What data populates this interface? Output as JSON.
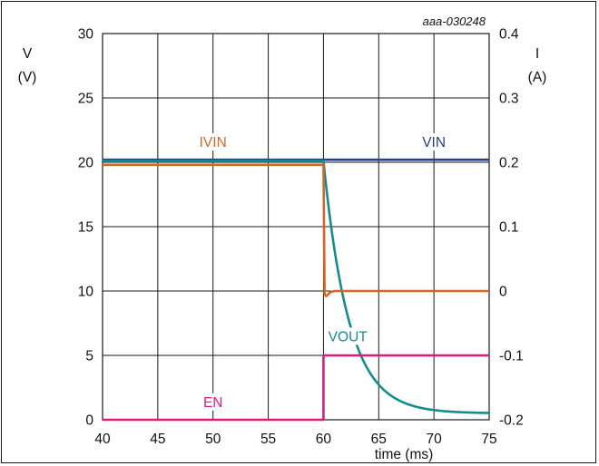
{
  "chart_data": {
    "type": "line",
    "code": "aaa-030248",
    "xlabel": "time (ms)",
    "ylabel_left": [
      "V",
      "(V)"
    ],
    "ylabel_right": [
      "I",
      "(A)"
    ],
    "xlim": [
      40,
      75
    ],
    "ylim_left": [
      0,
      30
    ],
    "ylim_right": [
      -0.2,
      0.4
    ],
    "x_ticks": [
      "40",
      "45",
      "50",
      "55",
      "60",
      "65",
      "70",
      "75"
    ],
    "y_ticks_left": [
      "0",
      "5",
      "10",
      "15",
      "20",
      "25",
      "30"
    ],
    "y_ticks_right": [
      "-0.2",
      "-0.1",
      "0",
      "0.1",
      "0.2",
      "0.3",
      "0.4"
    ],
    "grid": true,
    "series": [
      {
        "name": "VIN",
        "axis": "left",
        "color": "#253f8f",
        "x": [
          40,
          75
        ],
        "y": [
          20.2,
          20.2
        ]
      },
      {
        "name": "VOUT",
        "axis": "left",
        "color": "#158c8c",
        "x": [
          40,
          60,
          60.5,
          61,
          61.5,
          62,
          62.5,
          63,
          64,
          65,
          66,
          67,
          68,
          70,
          72,
          75
        ],
        "y": [
          20.1,
          20.1,
          16.5,
          13.4,
          10.9,
          8.9,
          7.3,
          6.0,
          4.1,
          2.9,
          2.1,
          1.6,
          1.2,
          0.8,
          0.6,
          0.5
        ]
      },
      {
        "name": "IVIN",
        "axis": "right",
        "color": "#d2672a",
        "x": [
          40,
          60,
          60.1,
          60.25,
          60.6,
          61,
          75
        ],
        "y": [
          0.196,
          0.196,
          -0.005,
          -0.008,
          -0.002,
          0.0,
          0.0
        ]
      },
      {
        "name": "EN",
        "axis": "left",
        "color": "#e0197e",
        "x": [
          40,
          60,
          60,
          75
        ],
        "y": [
          0,
          0,
          5,
          5
        ]
      }
    ],
    "labels": [
      {
        "text": "VIN",
        "x": 70,
        "y": 21.2,
        "color": "#253f8f"
      },
      {
        "text": "IVIN",
        "x": 50,
        "y": 21.2,
        "color": "#d2672a"
      },
      {
        "text": "VOUT",
        "x": 62.2,
        "y": 6.1,
        "color": "#158c8c"
      },
      {
        "text": "EN",
        "x": 50,
        "y": 1.0,
        "color": "#e0197e"
      }
    ]
  }
}
